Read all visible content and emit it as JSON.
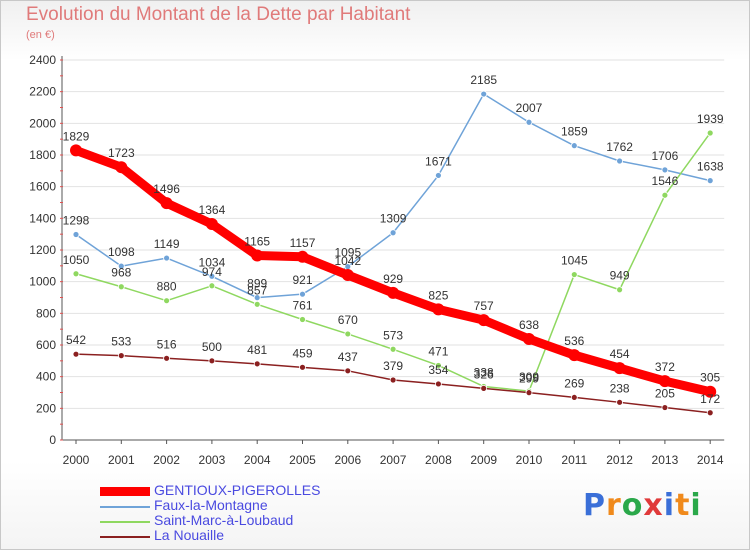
{
  "header": {
    "title": "Evolution du Montant de la Dette par Habitant",
    "subtitle": "(en €)"
  },
  "logo": {
    "text": "Proxiti",
    "letter_colors": [
      "#3a6fd8",
      "#f08a1c",
      "#2aa84a",
      "#e03a3a",
      "#3a6fd8",
      "#f08a1c",
      "#2aa84a"
    ]
  },
  "chart_data": {
    "type": "line",
    "title": "Evolution du Montant de la Dette par Habitant",
    "subtitle": "(en €)",
    "xlabel": "",
    "ylabel": "",
    "categories": [
      "2000",
      "2001",
      "2002",
      "2003",
      "2004",
      "2005",
      "2006",
      "2007",
      "2008",
      "2009",
      "2010",
      "2011",
      "2012",
      "2013",
      "2014"
    ],
    "ylim": [
      0,
      2400
    ],
    "yticks": [
      0,
      200,
      400,
      600,
      800,
      1000,
      1200,
      1400,
      1600,
      1800,
      2000,
      2200,
      2400
    ],
    "grid": true,
    "legend_position": "bottom-left",
    "series": [
      {
        "name": "GENTIOUX-PIGEROLLES",
        "color": "#ff0000",
        "emphasis": true,
        "values": [
          1829,
          1723,
          1496,
          1364,
          1165,
          1157,
          1042,
          929,
          825,
          757,
          638,
          536,
          454,
          372,
          305
        ],
        "labels": [
          "1829",
          "1723",
          "1496",
          "1364",
          "1165",
          "1157",
          "1042",
          "929",
          "825",
          "757",
          "638",
          "536",
          "454",
          "372",
          "305"
        ]
      },
      {
        "name": "Faux-la-Montagne",
        "color": "#6fa3d8",
        "emphasis": false,
        "values": [
          1298,
          1098,
          1149,
          1034,
          899,
          921,
          1095,
          1309,
          1671,
          2185,
          2007,
          1859,
          1762,
          1706,
          1638
        ],
        "labels": [
          "1298",
          "1098",
          "1149",
          "1034",
          "899",
          "921",
          "1095",
          "1309",
          "1671",
          "2185",
          "2007",
          "1859",
          "1762",
          "1706",
          "1638"
        ]
      },
      {
        "name": "Saint-Marc-à-Loubaud",
        "color": "#8fd860",
        "emphasis": false,
        "values": [
          1050,
          968,
          880,
          974,
          857,
          761,
          670,
          573,
          471,
          338,
          309,
          1045,
          949,
          1546,
          1939
        ],
        "labels": [
          "1050",
          "968",
          "880",
          "974",
          "857",
          "761",
          "670",
          "573",
          "471",
          "338",
          "309",
          "1045",
          "949",
          "1546",
          "1939"
        ]
      },
      {
        "name": "La Nouaille",
        "color": "#8b2020",
        "emphasis": false,
        "values": [
          542,
          533,
          516,
          500,
          481,
          459,
          437,
          379,
          354,
          326,
          299,
          269,
          238,
          205,
          172
        ],
        "labels": [
          "542",
          "533",
          "516",
          "500",
          "481",
          "459",
          "437",
          "379",
          "354",
          "326",
          "299",
          "269",
          "238",
          "205",
          "172"
        ]
      }
    ]
  }
}
